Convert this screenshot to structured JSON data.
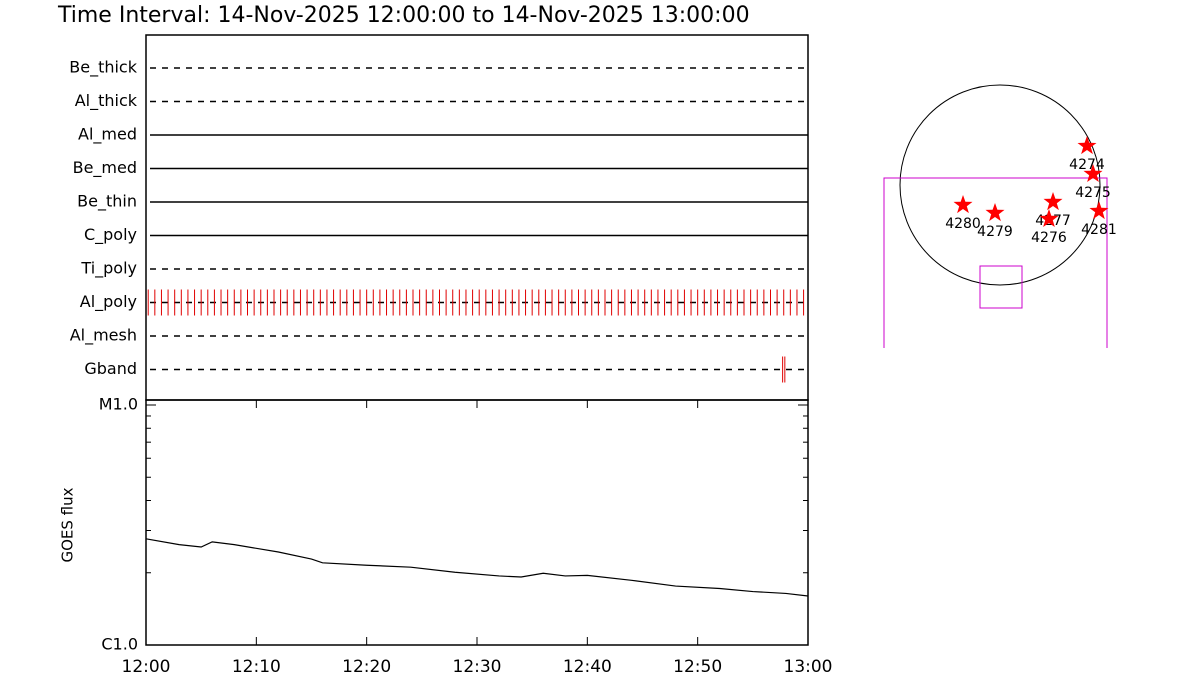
{
  "chart_data": [
    {
      "type": "timeline",
      "title": "Time Interval: 14-Nov-2025 12:00:00 to 14-Nov-2025 13:00:00",
      "categories": [
        "Be_thick",
        "Al_thick",
        "Al_med",
        "Be_med",
        "Be_thin",
        "C_poly",
        "Ti_poly",
        "Al_poly",
        "Al_mesh",
        "Gband"
      ],
      "line_styles": [
        "dashed",
        "dashed",
        "solid",
        "solid",
        "solid",
        "solid",
        "dashed",
        "dashed",
        "dashed",
        "dashed"
      ],
      "event_color": "#e00000",
      "xlim": [
        0,
        60
      ],
      "events": [
        [],
        [],
        [],
        [],
        [],
        [],
        [],
        [
          0.2,
          0.8,
          1.4,
          2.0,
          2.6,
          3.2,
          3.8,
          4.4,
          5.0,
          5.6,
          6.2,
          6.8,
          7.4,
          8.0,
          8.6,
          9.2,
          9.8,
          10.4,
          11.0,
          11.6,
          12.2,
          12.8,
          13.4,
          14.0,
          14.6,
          15.2,
          15.8,
          16.4,
          17.0,
          17.6,
          18.2,
          18.8,
          19.4,
          20.0,
          20.6,
          21.2,
          21.8,
          22.4,
          23.0,
          23.6,
          24.2,
          24.8,
          25.4,
          26.0,
          26.6,
          27.2,
          27.8,
          28.4,
          29.0,
          29.6,
          30.2,
          30.8,
          31.4,
          32.0,
          32.6,
          33.2,
          33.8,
          34.4,
          35.0,
          35.6,
          36.2,
          36.8,
          37.4,
          38.0,
          38.6,
          39.2,
          39.8,
          40.4,
          41.0,
          41.6,
          42.2,
          42.8,
          43.4,
          44.0,
          44.6,
          45.2,
          45.8,
          46.4,
          47.0,
          47.6,
          48.2,
          48.8,
          49.4,
          50.0,
          50.6,
          51.2,
          51.8,
          52.4,
          53.0,
          53.6,
          54.2,
          54.8,
          55.4,
          56.0,
          56.6,
          57.2,
          57.8,
          58.4,
          59.0,
          59.6
        ],
        [],
        [
          57.7,
          57.9
        ]
      ]
    },
    {
      "type": "line",
      "ylabel": "GOES flux",
      "log_scale": true,
      "color": "#000000",
      "x": [
        0,
        3,
        5,
        6,
        8,
        12,
        15,
        16,
        20,
        24,
        28,
        32,
        34,
        36,
        38,
        40,
        44,
        48,
        52,
        55,
        58,
        60
      ],
      "values": [
        2.77e-06,
        2.62e-06,
        2.56e-06,
        2.69e-06,
        2.62e-06,
        2.44e-06,
        2.28e-06,
        2.2e-06,
        2.15e-06,
        2.11e-06,
        2.01e-06,
        1.94e-06,
        1.92e-06,
        1.99e-06,
        1.94e-06,
        1.95e-06,
        1.86e-06,
        1.76e-06,
        1.72e-06,
        1.67e-06,
        1.64e-06,
        1.6e-06
      ],
      "xlim": [
        0,
        60
      ],
      "xticks": [
        {
          "value": 0,
          "label": "12:00"
        },
        {
          "value": 10,
          "label": "12:10"
        },
        {
          "value": 20,
          "label": "12:20"
        },
        {
          "value": 30,
          "label": "12:30"
        },
        {
          "value": 40,
          "label": "12:40"
        },
        {
          "value": 50,
          "label": "12:50"
        },
        {
          "value": 60,
          "label": "13:00"
        }
      ],
      "ylim": [
        1e-06,
        1e-05
      ],
      "yticks": [
        {
          "value": 1e-06,
          "label": "C1.0"
        },
        {
          "value": 1e-05,
          "label": "M1.0"
        }
      ]
    },
    {
      "type": "scatter",
      "color": "#ff0000",
      "categories": [
        "4274",
        "4275",
        "4280",
        "4279",
        "4277",
        "4276",
        "4281"
      ],
      "x": [
        835,
        893,
        -355,
        -48,
        509,
        470,
        950
      ],
      "values": [
        374,
        106,
        -192,
        -269,
        -163,
        -326,
        -250
      ],
      "xlim": [
        -1152,
        1152
      ],
      "ylim": [
        -1152,
        1152
      ]
    }
  ]
}
